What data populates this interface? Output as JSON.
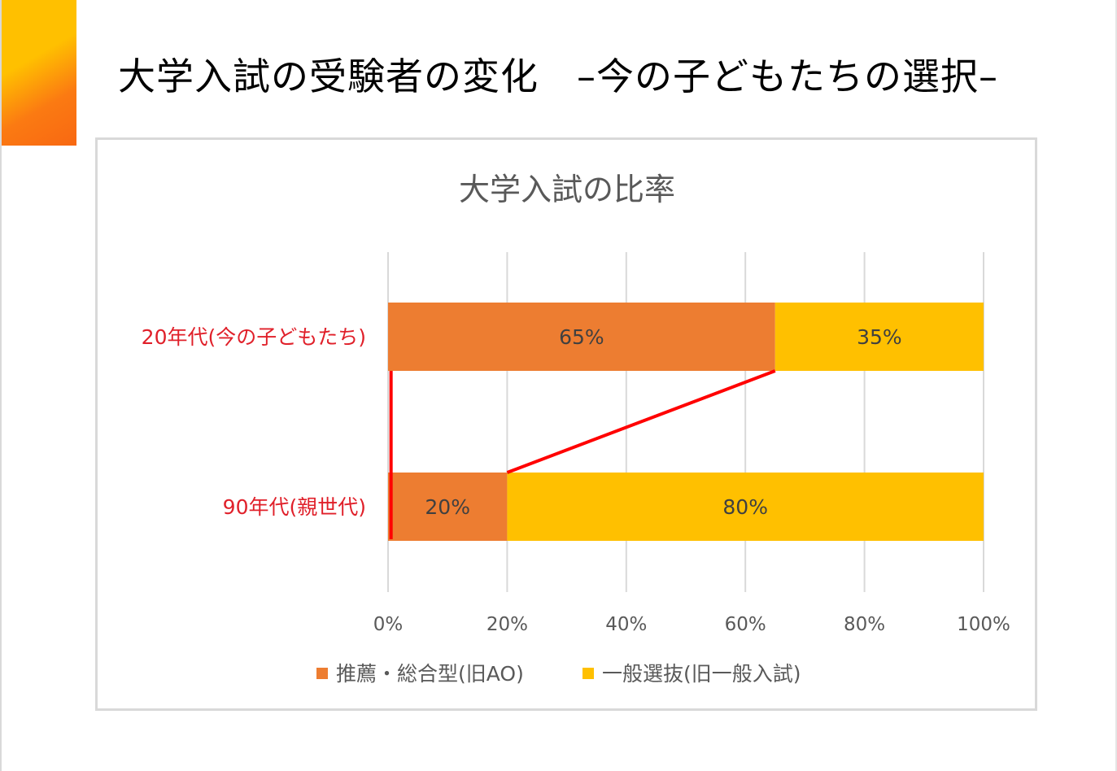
{
  "slide": {
    "title": "大学入試の受験者の変化　–今の子どもたちの選択–"
  },
  "colors": {
    "series1": "#ed7d31",
    "series2": "#ffc000",
    "annotation": "#ff0000",
    "category_label": "#e0202a",
    "accent_top": "#ffc000",
    "accent_bottom": "#f86812"
  },
  "chart_data": {
    "type": "bar",
    "orientation": "horizontal",
    "stacked": "percent",
    "title": "大学入試の比率",
    "categories": [
      "20年代(今の子どもたち)",
      "90年代(親世代)"
    ],
    "series": [
      {
        "name": "推薦・総合型(旧AO)",
        "values": [
          65,
          20
        ],
        "labels": [
          "65%",
          "20%"
        ]
      },
      {
        "name": "一般選抜(旧一般入試)",
        "values": [
          35,
          80
        ],
        "labels": [
          "35%",
          "80%"
        ]
      }
    ],
    "xlim": [
      0,
      100
    ],
    "xticks": [
      "0%",
      "20%",
      "40%",
      "60%",
      "80%",
      "100%"
    ],
    "grid": true,
    "legend": "bottom",
    "annotations": [
      {
        "type": "line",
        "from": {
          "category": 0,
          "x": 0.5
        },
        "to": {
          "category": 1,
          "x": 0.5
        }
      },
      {
        "type": "line",
        "from": {
          "category": 0,
          "x": 65
        },
        "to": {
          "category": 1,
          "x": 20
        }
      }
    ]
  }
}
